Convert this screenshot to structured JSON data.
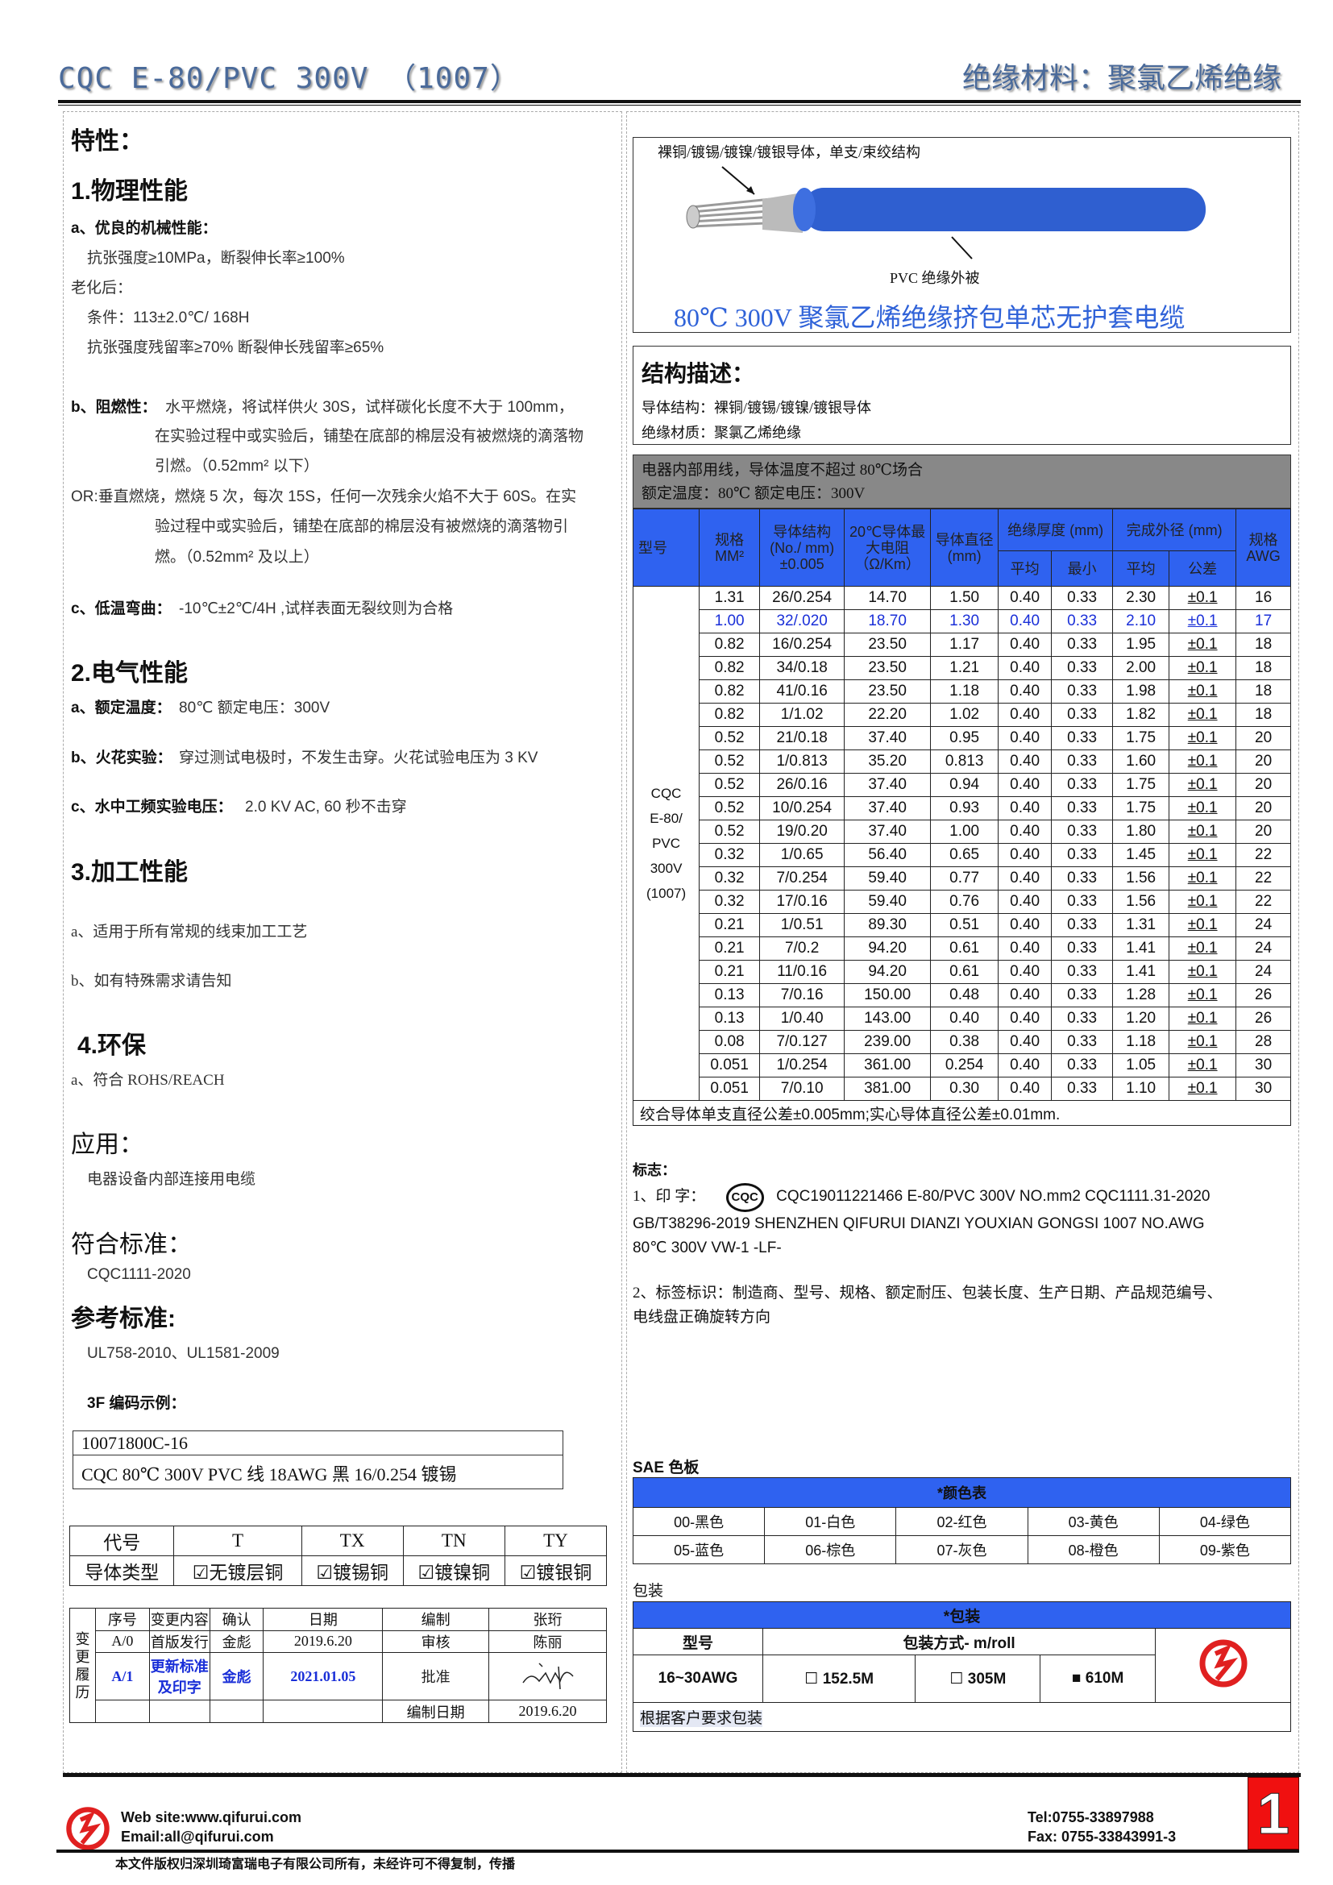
{
  "header": {
    "title_left": "CQC E-80/PVC 300V （1007）",
    "title_right": "绝缘材料：聚氯乙烯绝缘"
  },
  "left": {
    "characteristics": "特性：",
    "s1": {
      "title": "1.物理性能",
      "a_title": "a、优良的机械性能：",
      "a1": "抗张强度≥10MPa，断裂伸长率≥100%",
      "aging": "老化后：",
      "cond": "条件：113±2.0℃/ 168H",
      "retain": "抗张强度残留率≥70%  断裂伸长残留率≥65%",
      "b_title": "b、阻燃性：",
      "b1": "水平燃烧，将试样供火 30S，试样碳化长度不大于 100mm，",
      "b2": "在实验过程中或实验后，铺垫在底部的棉层没有被燃烧的滴落物",
      "b3": "引燃。（0.52mm² 以下）",
      "or1": "OR:垂直燃烧，燃烧 5 次，每次 15S，任何一次残余火焰不大于 60S。在实",
      "or2": "验过程中或实验后，铺垫在底部的棉层没有被燃烧的滴落物引",
      "or3": "燃。（0.52mm² 及以上）",
      "c_title": "c、低温弯曲：",
      "c1": "-10℃±2℃/4H ,试样表面无裂纹则为合格"
    },
    "s2": {
      "title": "2.电气性能",
      "a_title": "a、额定温度：",
      "a1": "80℃    额定电压：300V",
      "b_title": "b、火花实验：",
      "b1": "穿过测试电极时，不发生击穿。火花试验电压为 3 KV",
      "c_title": "c、水中工频实验电压：",
      "c1": "2.0 KV AC, 60 秒不击穿"
    },
    "s3": {
      "title": "3.加工性能",
      "a": "a、适用于所有常规的线束加工工艺",
      "b": "b、如有特殊需求请告知"
    },
    "s4": {
      "title": "4.环保",
      "a": "a、符合 ROHS/REACH"
    },
    "application": {
      "title": "应用：",
      "text": "电器设备内部连接用电缆"
    },
    "standard": {
      "title": "符合标准：",
      "text": "CQC1111-2020"
    },
    "reference": {
      "title": "参考标准:",
      "text": "UL758-2010、UL1581-2009"
    },
    "example": {
      "title": "3F 编码示例：",
      "line1": "10071800C-16",
      "line2": "CQC 80℃  300V PVC 线    18AWG  黑  16/0.254 镀锡"
    },
    "code_table": {
      "row1": [
        "代号",
        "T",
        "TX",
        "TN",
        "TY"
      ],
      "row2": [
        "导体类型",
        "无镀层铜",
        "镀锡铜",
        "镀镍铜",
        "镀银铜"
      ]
    },
    "history": {
      "label": "变更履历",
      "head": [
        "序号",
        "变更内容",
        "确认",
        "日期",
        "编制",
        "张珩"
      ],
      "r1": [
        "A/0",
        "首版发行",
        "金彪",
        "2019.6.20",
        "审核",
        "陈丽"
      ],
      "r2": [
        "A/1",
        "更新标准及印字",
        "金彪",
        "2021.01.05",
        "批准"
      ],
      "r3": [
        "编制日期",
        "2019.6.20"
      ]
    }
  },
  "right": {
    "figure": {
      "conductor_label": "裸铜/镀锡/镀镍/镀银导体，单支/束绞结构",
      "insulation_label": "PVC  绝缘外被",
      "title": "80℃  300V 聚氯乙烯绝缘挤包单芯无护套电缆",
      "wire_color": "#2f5fd0"
    },
    "structure": {
      "title": "结构描述：",
      "conductor": "导体结构：裸铜/镀锡/镀镍/镀银导体",
      "insulation": "绝缘材质：聚氯乙烯绝缘"
    },
    "spec_table": {
      "note1": "电器内部用线，导体温度不超过  80℃场合",
      "note2": "额定温度：80℃  额定电压：300V",
      "headers": {
        "model": "型号",
        "size": "规格 MM²",
        "conductor": "导体结构 (No./ mm) ±0.005",
        "resistance": "20℃导体最大电阻（Ω/Km）",
        "diameter": "导体直径 (mm)",
        "insul": "绝缘厚度 (mm)",
        "od": "完成外径 (mm)",
        "awg": "规格 AWG",
        "avg": "平均",
        "min": "最小",
        "avg2": "平均",
        "tol": "公差"
      },
      "model": "CQC E-80/ PVC 300V (1007)",
      "rows": [
        [
          "1.31",
          "26/0.254",
          "14.70",
          "1.50",
          "0.40",
          "0.33",
          "2.30",
          "±0.1",
          "16"
        ],
        [
          "1.00",
          "32/.020",
          "18.70",
          "1.30",
          "0.40",
          "0.33",
          "2.10",
          "±0.1",
          "17"
        ],
        [
          "0.82",
          "16/0.254",
          "23.50",
          "1.17",
          "0.40",
          "0.33",
          "1.95",
          "±0.1",
          "18"
        ],
        [
          "0.82",
          "34/0.18",
          "23.50",
          "1.21",
          "0.40",
          "0.33",
          "2.00",
          "±0.1",
          "18"
        ],
        [
          "0.82",
          "41/0.16",
          "23.50",
          "1.18",
          "0.40",
          "0.33",
          "1.98",
          "±0.1",
          "18"
        ],
        [
          "0.82",
          "1/1.02",
          "22.20",
          "1.02",
          "0.40",
          "0.33",
          "1.82",
          "±0.1",
          "18"
        ],
        [
          "0.52",
          "21/0.18",
          "37.40",
          "0.95",
          "0.40",
          "0.33",
          "1.75",
          "±0.1",
          "20"
        ],
        [
          "0.52",
          "1/0.813",
          "35.20",
          "0.813",
          "0.40",
          "0.33",
          "1.60",
          "±0.1",
          "20"
        ],
        [
          "0.52",
          "26/0.16",
          "37.40",
          "0.94",
          "0.40",
          "0.33",
          "1.75",
          "±0.1",
          "20"
        ],
        [
          "0.52",
          "10/0.254",
          "37.40",
          "0.93",
          "0.40",
          "0.33",
          "1.75",
          "±0.1",
          "20"
        ],
        [
          "0.52",
          "19/0.20",
          "37.40",
          "1.00",
          "0.40",
          "0.33",
          "1.80",
          "±0.1",
          "20"
        ],
        [
          "0.32",
          "1/0.65",
          "56.40",
          "0.65",
          "0.40",
          "0.33",
          "1.45",
          "±0.1",
          "22"
        ],
        [
          "0.32",
          "7/0.254",
          "59.40",
          "0.77",
          "0.40",
          "0.33",
          "1.56",
          "±0.1",
          "22"
        ],
        [
          "0.32",
          "17/0.16",
          "59.40",
          "0.76",
          "0.40",
          "0.33",
          "1.56",
          "±0.1",
          "22"
        ],
        [
          "0.21",
          "1/0.51",
          "89.30",
          "0.51",
          "0.40",
          "0.33",
          "1.31",
          "±0.1",
          "24"
        ],
        [
          "0.21",
          "7/0.2",
          "94.20",
          "0.61",
          "0.40",
          "0.33",
          "1.41",
          "±0.1",
          "24"
        ],
        [
          "0.21",
          "11/0.16",
          "94.20",
          "0.61",
          "0.40",
          "0.33",
          "1.41",
          "±0.1",
          "24"
        ],
        [
          "0.13",
          "7/0.16",
          "150.00",
          "0.48",
          "0.40",
          "0.33",
          "1.28",
          "±0.1",
          "26"
        ],
        [
          "0.13",
          "1/0.40",
          "143.00",
          "0.40",
          "0.40",
          "0.33",
          "1.20",
          "±0.1",
          "26"
        ],
        [
          "0.08",
          "7/0.127",
          "239.00",
          "0.38",
          "0.40",
          "0.33",
          "1.18",
          "±0.1",
          "28"
        ],
        [
          "0.051",
          "1/0.254",
          "361.00",
          "0.254",
          "0.40",
          "0.33",
          "1.05",
          "±0.1",
          "30"
        ],
        [
          "0.051",
          "7/0.10",
          "381.00",
          "0.30",
          "0.40",
          "0.33",
          "1.10",
          "±0.1",
          "30"
        ]
      ],
      "highlight_row": 1,
      "highlight_color": "#1a2fd8",
      "footnote": "绞合导体单支直径公差±0.005mm;实心导体直径公差±0.01mm."
    },
    "marking": {
      "title": "标志：",
      "p1_label": "1、印 字：",
      "cqc_logo": "CQC",
      "p1_text": "CQC19011221466   E-80/PVC   300V   NO.mm2   CQC1111.31-2020",
      "p1_line2": "GB/T38296-2019 SHENZHEN QIFURUI DIANZI YOUXIAN GONGSI      1007 NO.AWG",
      "p1_line3": "80℃  300V VW-1 -LF-",
      "p2_line1": "2、标签标识：制造商、型号、规格、额定耐压、包装长度、生产日期、产品规范编号、",
      "p2_line2": "电线盘正确旋转方向"
    },
    "colors": {
      "title": "SAE 色板",
      "table_title": "*颜色表",
      "items": [
        "00-黑色",
        "01-白色",
        "02-红色",
        "03-黄色",
        "04-绿色",
        "05-蓝色",
        "06-棕色",
        "07-灰色",
        "08-橙色",
        "09-紫色"
      ]
    },
    "packaging": {
      "title": "包装",
      "table_title": "*包装",
      "model_label": "型号",
      "method_label": "包装方式- m/roll",
      "model": "16~30AWG",
      "options": [
        {
          "label": "152.5M",
          "checked": false
        },
        {
          "label": "305M",
          "checked": false
        },
        {
          "label": "610M",
          "checked": true
        }
      ],
      "note": "根据客户要求包装"
    }
  },
  "footer": {
    "website": "Web site:www.qifurui.com",
    "email": "Email:all@qifurui.com",
    "tel": "Tel:0755-33897988",
    "fax": "Fax: 0755-33843991-3",
    "page": "1",
    "copyright": "本文件版权归深圳琦富瑞电子有限公司所有，未经许可不得复制，传播"
  },
  "accent": "#2f62f0",
  "brand_red": "#e02020"
}
